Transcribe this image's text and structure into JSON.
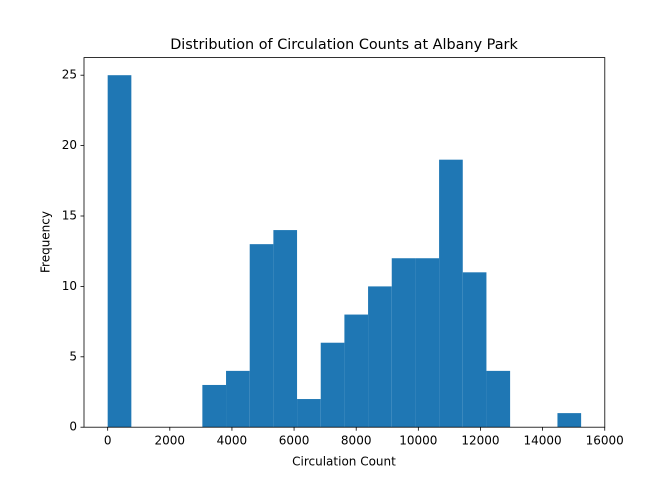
{
  "chart_data": {
    "type": "histogram",
    "title": "Distribution of Circulation Counts at Albany Park",
    "x_label": "Circulation Count",
    "y_label": "Frequency",
    "bins": [
      0,
      762,
      1524,
      2286,
      3048,
      3810,
      4572,
      5334,
      6096,
      6858,
      7620,
      8382,
      9144,
      9906,
      10668,
      11430,
      12192,
      12954,
      13716,
      14478,
      15240
    ],
    "counts": [
      25,
      0,
      0,
      0,
      3,
      4,
      13,
      14,
      2,
      6,
      8,
      10,
      12,
      12,
      19,
      11,
      4,
      0,
      0,
      1
    ],
    "color": "#1f77b4",
    "xlim": [
      -762,
      16002
    ],
    "ylim": [
      0,
      26.25
    ],
    "xticks": [
      0,
      2000,
      4000,
      6000,
      8000,
      10000,
      12000,
      14000,
      16000
    ],
    "yticks": [
      0,
      5,
      10,
      15,
      20,
      25
    ]
  }
}
